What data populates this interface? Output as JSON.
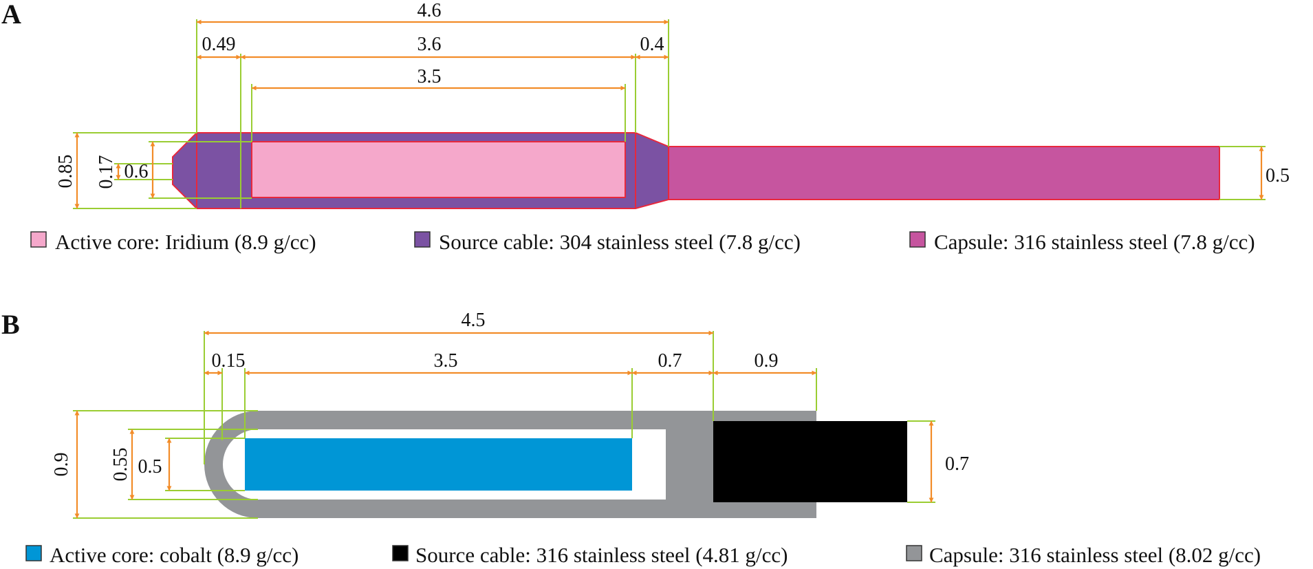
{
  "panels": [
    {
      "label": "A",
      "dims": {
        "total": "4.6",
        "tip": "0.49",
        "cable": "3.6",
        "end": "0.4",
        "core": "3.5",
        "outer_d": "0.85",
        "tip_d": "0.17",
        "core_d": "0.6",
        "capsule_d": "0.5"
      },
      "legend": [
        {
          "color": "#f5a8cb",
          "text": "Active core: Iridium (8.9 g/cc)"
        },
        {
          "color": "#7b52a3",
          "text": "Source cable: 304 stainless steel (7.8 g/cc)"
        },
        {
          "color": "#c6559f",
          "text": "Capsule: 316 stainless steel (7.8 g/cc)"
        }
      ]
    },
    {
      "label": "B",
      "dims": {
        "total": "4.5",
        "wall": "0.15",
        "core": "3.5",
        "gap": "0.7",
        "cable_len": "0.9",
        "outer_d": "0.9",
        "inner_d": "0.55",
        "core_d": "0.5",
        "cable_d": "0.7"
      },
      "legend": [
        {
          "color": "#0096d6",
          "text": "Active core: cobalt (8.9 g/cc)"
        },
        {
          "color": "#000000",
          "text": "Source cable: 316 stainless steel (4.81 g/cc)"
        },
        {
          "color": "#939598",
          "text": "Capsule: 316 stainless steel (8.02 g/cc)"
        }
      ]
    }
  ]
}
